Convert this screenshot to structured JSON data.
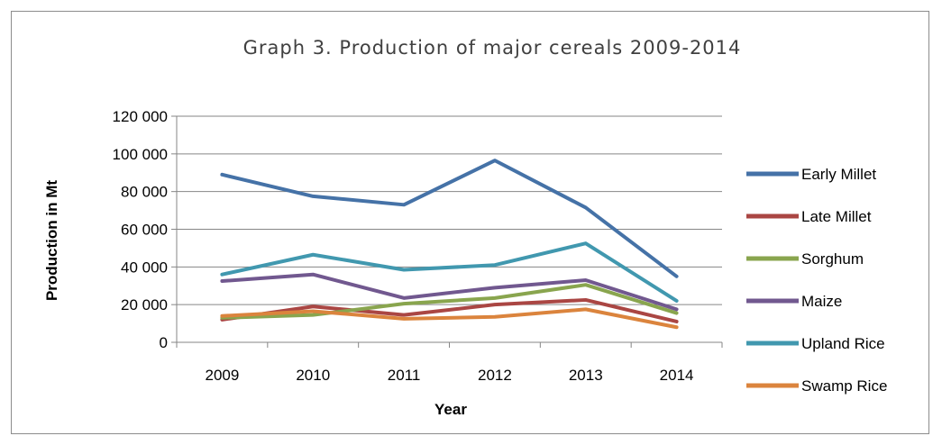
{
  "chart_data": {
    "type": "line",
    "title": "Graph 3. Production of major cereals 2009-2014",
    "xlabel": "Year",
    "ylabel": "Production in Mt",
    "categories": [
      "2009",
      "2010",
      "2011",
      "2012",
      "2013",
      "2014"
    ],
    "ylim": [
      0,
      120000
    ],
    "yticks": [
      0,
      20000,
      40000,
      60000,
      80000,
      100000,
      120000
    ],
    "ytick_labels": [
      "0",
      "20 000",
      "40 000",
      "60 000",
      "80 000",
      "100 000",
      "120 000"
    ],
    "grid": "horizontal",
    "legend_position": "right",
    "series": [
      {
        "name": "Early Millet",
        "color": "#4572a7",
        "values": [
          89000,
          77500,
          73000,
          96500,
          71500,
          35000
        ]
      },
      {
        "name": "Late Millet",
        "color": "#aa4643",
        "values": [
          12000,
          19000,
          14500,
          20000,
          22500,
          11000
        ]
      },
      {
        "name": "Sorghum",
        "color": "#89a54e",
        "values": [
          13000,
          14500,
          20500,
          23500,
          30500,
          15500
        ]
      },
      {
        "name": "Maize",
        "color": "#71588f",
        "values": [
          32500,
          36000,
          23500,
          29000,
          33000,
          17500
        ]
      },
      {
        "name": "Upland Rice",
        "color": "#4198af",
        "values": [
          36000,
          46500,
          38500,
          41000,
          52500,
          22000
        ]
      },
      {
        "name": "Swamp Rice",
        "color": "#db843d",
        "values": [
          14000,
          16500,
          12500,
          13500,
          17500,
          8000
        ]
      }
    ]
  }
}
